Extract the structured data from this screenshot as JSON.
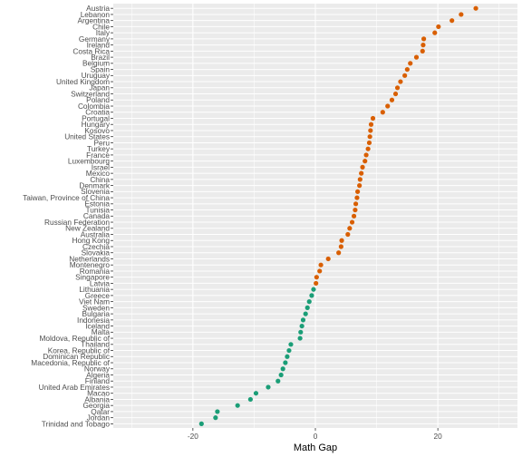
{
  "chart_data": {
    "type": "scatter",
    "title": "",
    "xlabel": "Math Gap",
    "ylabel": "",
    "xlim": [
      -33,
      33
    ],
    "x_ticks": [
      -20,
      0,
      20
    ],
    "grid": true,
    "legend": "none",
    "colors": {
      "positive": "#d95f02",
      "negative": "#1b9e77",
      "panel": "#ebebeb",
      "grid": "#ffffff"
    },
    "points": [
      {
        "country": "Austria",
        "value": 26.2
      },
      {
        "country": "Lebanon",
        "value": 23.8
      },
      {
        "country": "Argentina",
        "value": 22.3
      },
      {
        "country": "Chile",
        "value": 20.1
      },
      {
        "country": "Italy",
        "value": 19.5
      },
      {
        "country": "Germany",
        "value": 17.7
      },
      {
        "country": "Ireland",
        "value": 17.6
      },
      {
        "country": "Costa Rica",
        "value": 17.5
      },
      {
        "country": "Brazil",
        "value": 16.5
      },
      {
        "country": "Belgium",
        "value": 15.5
      },
      {
        "country": "Spain",
        "value": 15.0
      },
      {
        "country": "Uruguay",
        "value": 14.6
      },
      {
        "country": "United Kingdom",
        "value": 13.9
      },
      {
        "country": "Japan",
        "value": 13.4
      },
      {
        "country": "Switzerland",
        "value": 13.1
      },
      {
        "country": "Poland",
        "value": 12.5
      },
      {
        "country": "Colombia",
        "value": 11.8
      },
      {
        "country": "Croatia",
        "value": 11.0
      },
      {
        "country": "Portugal",
        "value": 9.4
      },
      {
        "country": "Hungary",
        "value": 9.1
      },
      {
        "country": "Kosovo",
        "value": 9.0
      },
      {
        "country": "United States",
        "value": 8.9
      },
      {
        "country": "Peru",
        "value": 8.8
      },
      {
        "country": "Turkey",
        "value": 8.6
      },
      {
        "country": "France",
        "value": 8.3
      },
      {
        "country": "Luxembourg",
        "value": 8.1
      },
      {
        "country": "Israel",
        "value": 7.7
      },
      {
        "country": "Mexico",
        "value": 7.5
      },
      {
        "country": "China",
        "value": 7.3
      },
      {
        "country": "Denmark",
        "value": 7.2
      },
      {
        "country": "Slovenia",
        "value": 6.9
      },
      {
        "country": "Taiwan, Province of China",
        "value": 6.8
      },
      {
        "country": "Estonia",
        "value": 6.6
      },
      {
        "country": "Tunisia",
        "value": 6.5
      },
      {
        "country": "Canada",
        "value": 6.3
      },
      {
        "country": "Russian Federation",
        "value": 6.0
      },
      {
        "country": "New Zealand",
        "value": 5.6
      },
      {
        "country": "Australia",
        "value": 5.3
      },
      {
        "country": "Hong Kong",
        "value": 4.3
      },
      {
        "country": "Czechia",
        "value": 4.2
      },
      {
        "country": "Slovakia",
        "value": 3.8
      },
      {
        "country": "Netherlands",
        "value": 2.1
      },
      {
        "country": "Montenegro",
        "value": 0.9
      },
      {
        "country": "Romania",
        "value": 0.7
      },
      {
        "country": "Singapore",
        "value": 0.2
      },
      {
        "country": "Latvia",
        "value": 0.1
      },
      {
        "country": "Lithuania",
        "value": -0.3
      },
      {
        "country": "Greece",
        "value": -0.6
      },
      {
        "country": "Viet Nam",
        "value": -1.0
      },
      {
        "country": "Sweden",
        "value": -1.3
      },
      {
        "country": "Bulgaria",
        "value": -1.6
      },
      {
        "country": "Indonesia",
        "value": -2.0
      },
      {
        "country": "Iceland",
        "value": -2.2
      },
      {
        "country": "Malta",
        "value": -2.4
      },
      {
        "country": "Moldova, Republic of",
        "value": -2.5
      },
      {
        "country": "Thailand",
        "value": -4.0
      },
      {
        "country": "Korea, Republic of",
        "value": -4.3
      },
      {
        "country": "Dominican Republic",
        "value": -4.6
      },
      {
        "country": "Macedonia, Republic of",
        "value": -4.9
      },
      {
        "country": "Norway",
        "value": -5.3
      },
      {
        "country": "Algeria",
        "value": -5.6
      },
      {
        "country": "Finland",
        "value": -6.1
      },
      {
        "country": "United Arab Emirates",
        "value": -7.7
      },
      {
        "country": "Macao",
        "value": -9.7
      },
      {
        "country": "Albania",
        "value": -10.6
      },
      {
        "country": "Georgia",
        "value": -12.7
      },
      {
        "country": "Qatar",
        "value": -16.0
      },
      {
        "country": "Jordan",
        "value": -16.3
      },
      {
        "country": "Trinidad and Tobago",
        "value": -18.6
      }
    ]
  }
}
